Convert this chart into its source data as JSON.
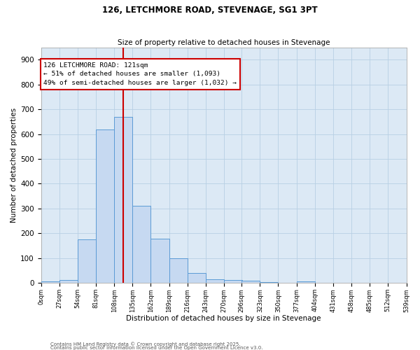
{
  "title_line1": "126, LETCHMORE ROAD, STEVENAGE, SG1 3PT",
  "title_line2": "Size of property relative to detached houses in Stevenage",
  "xlabel": "Distribution of detached houses by size in Stevenage",
  "ylabel": "Number of detached properties",
  "bin_edges": [
    0,
    27,
    54,
    81,
    108,
    135,
    162,
    189,
    216,
    243,
    270,
    296,
    323,
    350,
    377,
    404,
    431,
    458,
    485,
    512,
    539
  ],
  "bar_heights": [
    5,
    12,
    175,
    620,
    670,
    310,
    178,
    98,
    40,
    15,
    12,
    8,
    3,
    0,
    7,
    0,
    0,
    0,
    0,
    0
  ],
  "bar_color": "#c6d9f1",
  "bar_edge_color": "#5b9bd5",
  "vline_x": 121,
  "vline_color": "#cc0000",
  "annotation_line1": "126 LETCHMORE ROAD: 121sqm",
  "annotation_line2": "← 51% of detached houses are smaller (1,093)",
  "annotation_line3": "49% of semi-detached houses are larger (1,032) →",
  "annotation_box_color": "#ffffff",
  "annotation_box_edge_color": "#cc0000",
  "ylim_max": 950,
  "yticks": [
    0,
    100,
    200,
    300,
    400,
    500,
    600,
    700,
    800,
    900
  ],
  "tick_labels": [
    "0sqm",
    "27sqm",
    "54sqm",
    "81sqm",
    "108sqm",
    "135sqm",
    "162sqm",
    "189sqm",
    "216sqm",
    "243sqm",
    "270sqm",
    "296sqm",
    "323sqm",
    "350sqm",
    "377sqm",
    "404sqm",
    "431sqm",
    "458sqm",
    "485sqm",
    "512sqm",
    "539sqm"
  ],
  "grid_color": "#b8cfe4",
  "background_color": "#dce9f5",
  "footer_line1": "Contains HM Land Registry data © Crown copyright and database right 2025.",
  "footer_line2": "Contains public sector information licensed under the Open Government Licence v3.0."
}
